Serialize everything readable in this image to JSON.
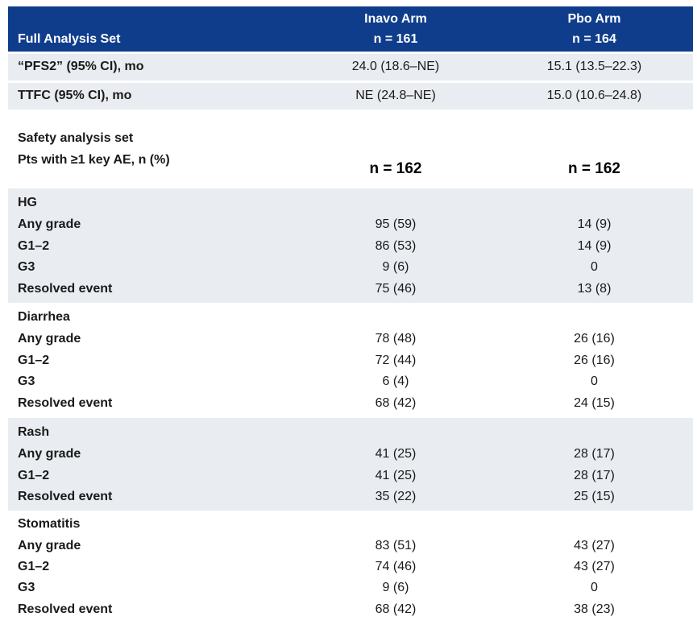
{
  "header": {
    "set_label": "Full Analysis Set",
    "arm1_name": "Inavo Arm",
    "arm1_n": "n = 161",
    "arm2_name": "Pbo Arm",
    "arm2_n": "n = 164"
  },
  "efficacy_rows": [
    {
      "label": "“PFS2” (95% CI), mo",
      "arm1": "24.0 (18.6–NE)",
      "arm2": "15.1 (13.5–22.3)"
    },
    {
      "label": "TTFC (95% CI), mo",
      "arm1": "NE (24.8–NE)",
      "arm2": "15.0 (10.6–24.8)"
    }
  ],
  "safety": {
    "title": "Safety analysis set",
    "subtitle": "Pts with ≥1 key AE, n (%)",
    "arm1_n": "n = 162",
    "arm2_n": "n = 162"
  },
  "ae_groups": [
    {
      "name": "HG",
      "rows": [
        {
          "label": "Any grade",
          "arm1": "95 (59)",
          "arm2": "14 (9)"
        },
        {
          "label": "G1–2",
          "arm1": "86 (53)",
          "arm2": "14 (9)"
        },
        {
          "label": "G3",
          "arm1": "9 (6)",
          "arm2": "0"
        },
        {
          "label": "Resolved event",
          "arm1": "75 (46)",
          "arm2": "13 (8)"
        }
      ]
    },
    {
      "name": "Diarrhea",
      "rows": [
        {
          "label": "Any grade",
          "arm1": "78 (48)",
          "arm2": "26 (16)"
        },
        {
          "label": "G1–2",
          "arm1": "72 (44)",
          "arm2": "26 (16)"
        },
        {
          "label": "G3",
          "arm1": "6 (4)",
          "arm2": "0"
        },
        {
          "label": "Resolved event",
          "arm1": "68 (42)",
          "arm2": "24 (15)"
        }
      ]
    },
    {
      "name": "Rash",
      "rows": [
        {
          "label": "Any grade",
          "arm1": "41 (25)",
          "arm2": "28 (17)"
        },
        {
          "label": "G1–2",
          "arm1": "41 (25)",
          "arm2": "28 (17)"
        },
        {
          "label": "Resolved event",
          "arm1": "35 (22)",
          "arm2": "25 (15)"
        }
      ]
    },
    {
      "name": "Stomatitis",
      "rows": [
        {
          "label": "Any grade",
          "arm1": "83 (51)",
          "arm2": "43 (27)"
        },
        {
          "label": "G1–2",
          "arm1": "74 (46)",
          "arm2": "43 (27)"
        },
        {
          "label": "G3",
          "arm1": "9 (6)",
          "arm2": "0"
        },
        {
          "label": "Resolved event",
          "arm1": "68 (42)",
          "arm2": "38 (23)"
        }
      ]
    }
  ]
}
